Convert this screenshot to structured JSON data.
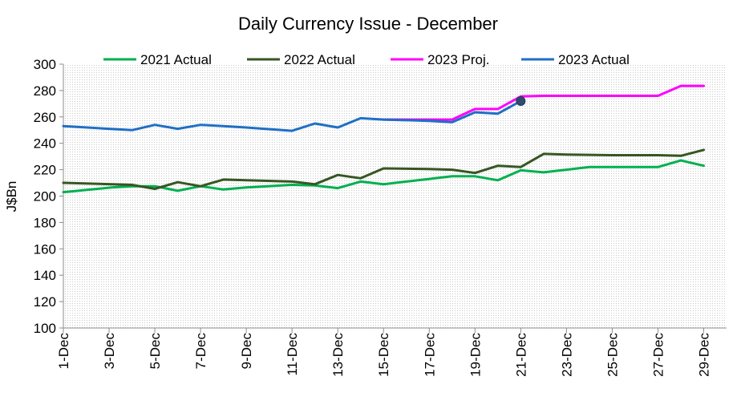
{
  "chart_data": {
    "type": "line",
    "title": "Daily Currency Issue -  December",
    "xlabel": "",
    "ylabel": "J$Bn",
    "ylim": [
      100,
      300
    ],
    "yticks": [
      100,
      120,
      140,
      160,
      180,
      200,
      220,
      240,
      260,
      280,
      300
    ],
    "xlim": [
      1,
      30
    ],
    "xticks": [
      1,
      3,
      5,
      7,
      9,
      11,
      13,
      15,
      17,
      19,
      21,
      23,
      25,
      27,
      29
    ],
    "xticklabels": [
      "1-Dec",
      "3-Dec",
      "5-Dec",
      "7-Dec",
      "9-Dec",
      "11-Dec",
      "13-Dec",
      "15-Dec",
      "17-Dec",
      "19-Dec",
      "21-Dec",
      "23-Dec",
      "25-Dec",
      "27-Dec",
      "29-Dec"
    ],
    "grid": false,
    "legend": "top",
    "series": [
      {
        "name": "2021 Actual",
        "color": "#00B050",
        "x": [
          1,
          3.1,
          4,
          5,
          6,
          7,
          8,
          9,
          11,
          12,
          13,
          14,
          15,
          17,
          18,
          19,
          20,
          21,
          22,
          23,
          24,
          25,
          26,
          27,
          28,
          29
        ],
        "values": [
          203,
          206.5,
          207.5,
          207.5,
          204,
          207.5,
          205,
          206.5,
          208.5,
          208,
          206,
          211,
          209,
          213,
          215,
          215,
          212,
          219.5,
          218,
          220,
          222,
          222,
          222,
          222,
          227,
          223
        ]
      },
      {
        "name": "2022 Actual",
        "color": "#375623",
        "x": [
          1,
          4,
          5,
          6,
          7,
          8,
          9,
          11,
          12,
          13,
          14,
          15,
          17,
          18,
          19,
          20,
          21,
          22,
          23,
          25,
          26,
          27,
          28,
          29
        ],
        "values": [
          210,
          208.5,
          205.5,
          210.5,
          207.5,
          212.5,
          212,
          211,
          209,
          216,
          213.5,
          221,
          220.5,
          220,
          217.5,
          223,
          222,
          232,
          231.5,
          231,
          231,
          231,
          230.5,
          235
        ]
      },
      {
        "name": "2023 Proj.",
        "color": "#FF00FF",
        "x": [
          15,
          18,
          19,
          20,
          21,
          22,
          23,
          25,
          26,
          27,
          28,
          29
        ],
        "values": [
          258,
          258,
          266,
          266,
          275.5,
          276,
          276,
          276,
          276,
          276,
          283.5,
          283.5
        ]
      },
      {
        "name": "2023 Actual",
        "color": "#1F6FC5",
        "x": [
          1,
          4,
          5,
          6,
          7,
          8,
          9,
          11,
          12,
          13,
          14,
          15,
          17,
          18,
          19,
          20,
          21
        ],
        "values": [
          253,
          250,
          254,
          251,
          254,
          253,
          252,
          249.5,
          255,
          252,
          259,
          258,
          257,
          256,
          263.5,
          262.5,
          272
        ]
      }
    ],
    "marker": {
      "series": "2023 Actual",
      "x": 21,
      "y": 272,
      "color": "#2E4C6D"
    }
  }
}
